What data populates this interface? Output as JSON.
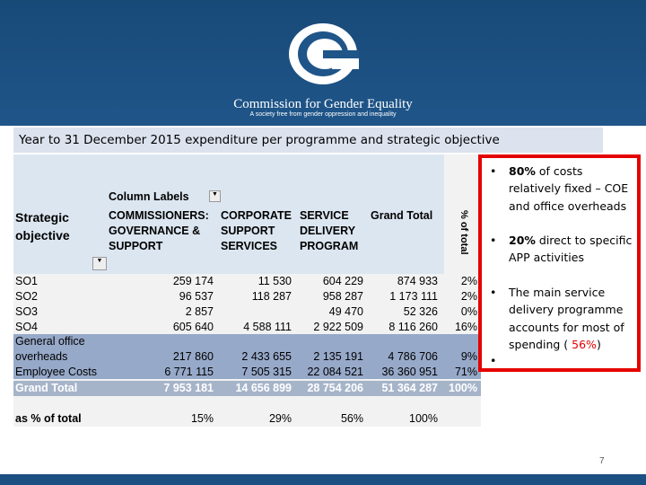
{
  "header": {
    "org_name": "Commission for Gender Equality",
    "tagline": "A society free from gender oppression and inequality"
  },
  "title": "Year to 31 December 2015 expenditure per programme and strategic objective",
  "table": {
    "column_labels": "Column Labels",
    "row_header": "Strategic objective",
    "columns": [
      "COMMISSIONERS: GOVERNANCE & SUPPORT",
      "CORPORATE SUPPORT SERVICES",
      "SERVICE DELIVERY PROGRAM",
      "Grand Total",
      "% of total"
    ],
    "rows": [
      [
        "SO1",
        "259 174",
        "11 530",
        "604 229",
        "874 933",
        "2%"
      ],
      [
        "SO2",
        "96 537",
        "118 287",
        "958 287",
        "1 173 111",
        "2%"
      ],
      [
        "SO3",
        "2 857",
        null,
        "49 470",
        "52 326",
        "0%"
      ],
      [
        "SO4",
        "605 640",
        "4 588 111",
        "2 922 509",
        "8 116 260",
        "16%"
      ],
      [
        "General office overheads",
        "217 860",
        "2 433 655",
        "2 135 191",
        "4 786 706",
        "9%"
      ],
      [
        "Employee Costs",
        "6 771 115",
        "7 505 315",
        "22 084 521",
        "36 360 951",
        "71%"
      ],
      [
        "Grand Total",
        "7 953 181",
        "14 656 899",
        "28 754 206",
        "51 364 287",
        "100%"
      ]
    ],
    "share_row": [
      "as % of total",
      "15%",
      "29%",
      "56%",
      "100%"
    ]
  },
  "bullets": [
    [
      "80%",
      " of costs relatively fixed – COE and office overheads"
    ],
    [
      "20%",
      " direct to specific APP activities"
    ],
    [
      "The main service delivery programme accounts for most of spending ( ",
      "56%",
      ")"
    ]
  ],
  "page_number": "7"
}
